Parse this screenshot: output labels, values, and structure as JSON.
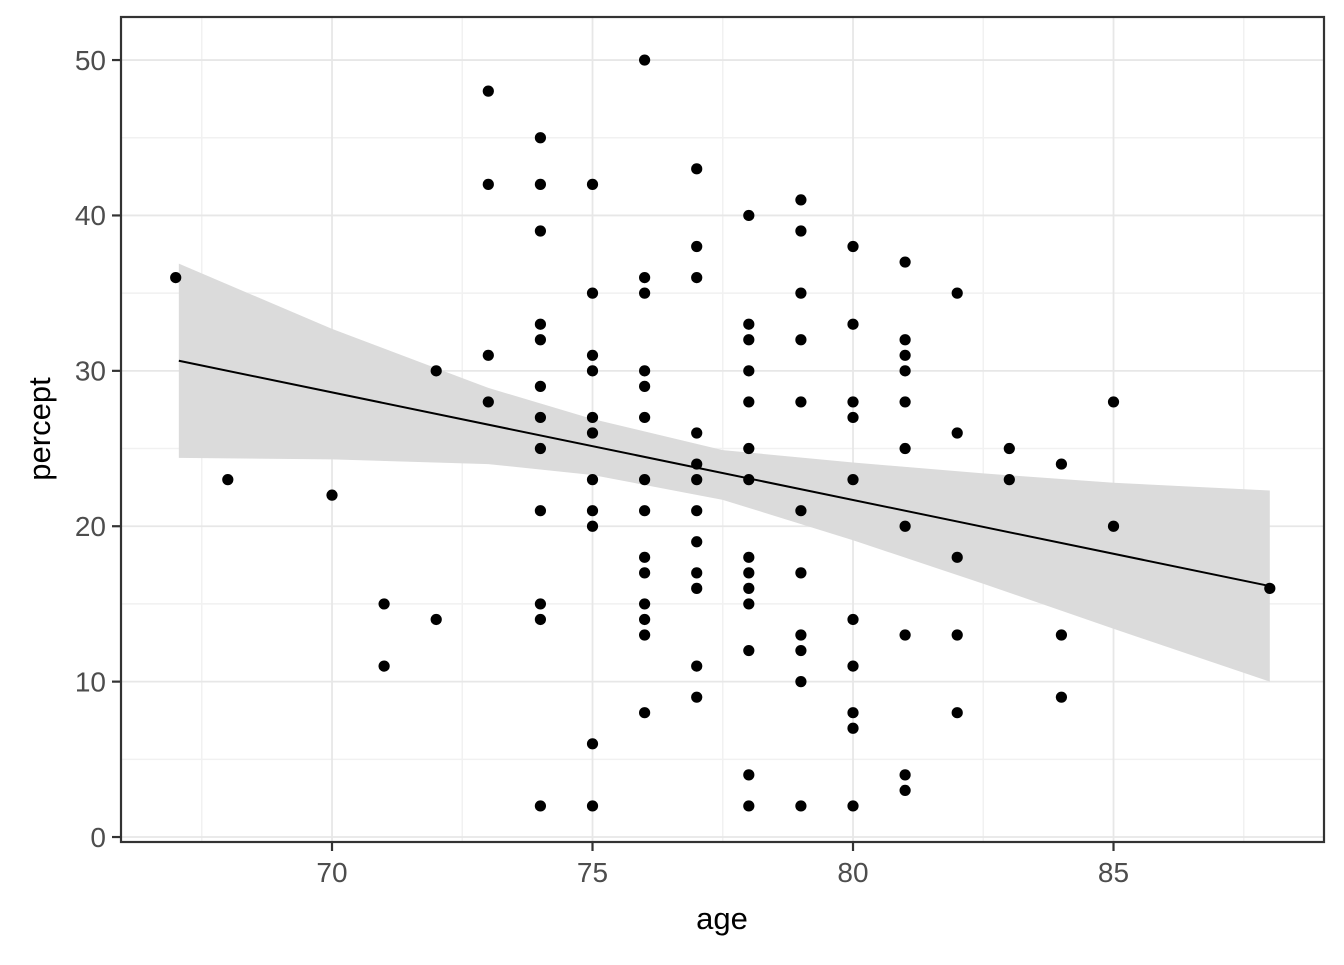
{
  "chart_data": {
    "type": "scatter",
    "title": "",
    "xlabel": "age",
    "ylabel": "percept",
    "xlim": [
      65.95,
      89.04
    ],
    "ylim": [
      -0.32,
      52.77
    ],
    "x_ticks": [
      70,
      75,
      80,
      85
    ],
    "y_ticks": [
      0,
      10,
      20,
      30,
      40,
      50
    ],
    "x_minor": [
      67.5,
      72.5,
      77.5,
      82.5,
      87.5
    ],
    "y_minor": [
      5,
      15,
      25,
      35,
      45
    ],
    "grid": true,
    "legend": "none",
    "points": [
      [
        67,
        36
      ],
      [
        68,
        23
      ],
      [
        70,
        22
      ],
      [
        71,
        15
      ],
      [
        71,
        11
      ],
      [
        72,
        30
      ],
      [
        72,
        14
      ],
      [
        73,
        48
      ],
      [
        73,
        42
      ],
      [
        73,
        31
      ],
      [
        73,
        28
      ],
      [
        74,
        45
      ],
      [
        74,
        42
      ],
      [
        74,
        39
      ],
      [
        74,
        33
      ],
      [
        74,
        32
      ],
      [
        74,
        29
      ],
      [
        74,
        27
      ],
      [
        74,
        25
      ],
      [
        74,
        21
      ],
      [
        74,
        15
      ],
      [
        74,
        14
      ],
      [
        74,
        2
      ],
      [
        75,
        42
      ],
      [
        75,
        35
      ],
      [
        75,
        31
      ],
      [
        75,
        30
      ],
      [
        75,
        27
      ],
      [
        75,
        26
      ],
      [
        75,
        23
      ],
      [
        75,
        21
      ],
      [
        75,
        20
      ],
      [
        75,
        6
      ],
      [
        75,
        2
      ],
      [
        76,
        50
      ],
      [
        76,
        36
      ],
      [
        76,
        35
      ],
      [
        76,
        30
      ],
      [
        76,
        29
      ],
      [
        76,
        27
      ],
      [
        76,
        23
      ],
      [
        76,
        21
      ],
      [
        76,
        18
      ],
      [
        76,
        17
      ],
      [
        76,
        15
      ],
      [
        76,
        14
      ],
      [
        76,
        13
      ],
      [
        76,
        8
      ],
      [
        77,
        43
      ],
      [
        77,
        38
      ],
      [
        77,
        36
      ],
      [
        77,
        26
      ],
      [
        77,
        24
      ],
      [
        77,
        23
      ],
      [
        77,
        21
      ],
      [
        77,
        19
      ],
      [
        77,
        17
      ],
      [
        77,
        16
      ],
      [
        77,
        11
      ],
      [
        77,
        9
      ],
      [
        78,
        40
      ],
      [
        78,
        33
      ],
      [
        78,
        32
      ],
      [
        78,
        30
      ],
      [
        78,
        28
      ],
      [
        78,
        25
      ],
      [
        78,
        23
      ],
      [
        78,
        18
      ],
      [
        78,
        17
      ],
      [
        78,
        16
      ],
      [
        78,
        15
      ],
      [
        78,
        12
      ],
      [
        78,
        4
      ],
      [
        78,
        2
      ],
      [
        79,
        41
      ],
      [
        79,
        39
      ],
      [
        79,
        35
      ],
      [
        79,
        32
      ],
      [
        79,
        28
      ],
      [
        79,
        21
      ],
      [
        79,
        17
      ],
      [
        79,
        13
      ],
      [
        79,
        12
      ],
      [
        79,
        10
      ],
      [
        79,
        2
      ],
      [
        80,
        38
      ],
      [
        80,
        33
      ],
      [
        80,
        28
      ],
      [
        80,
        27
      ],
      [
        80,
        23
      ],
      [
        80,
        14
      ],
      [
        80,
        11
      ],
      [
        80,
        8
      ],
      [
        80,
        7
      ],
      [
        80,
        2
      ],
      [
        81,
        37
      ],
      [
        81,
        32
      ],
      [
        81,
        31
      ],
      [
        81,
        30
      ],
      [
        81,
        28
      ],
      [
        81,
        25
      ],
      [
        81,
        20
      ],
      [
        81,
        13
      ],
      [
        81,
        4
      ],
      [
        81,
        3
      ],
      [
        82,
        35
      ],
      [
        82,
        26
      ],
      [
        82,
        18
      ],
      [
        82,
        13
      ],
      [
        82,
        8
      ],
      [
        83,
        25
      ],
      [
        83,
        23
      ],
      [
        84,
        24
      ],
      [
        84,
        13
      ],
      [
        84,
        9
      ],
      [
        85,
        28
      ],
      [
        85,
        20
      ],
      [
        88,
        16
      ]
    ],
    "regression_line": {
      "x1": 67.06,
      "y1": 30.65,
      "x2": 88,
      "y2": 16.15
    },
    "ci_band": {
      "ages": [
        67.06,
        70,
        73,
        75,
        77.5,
        80,
        82.5,
        85,
        88
      ],
      "upper": [
        36.9,
        32.7,
        28.9,
        26.9,
        24.9,
        24.1,
        23.4,
        22.8,
        22.3
      ],
      "lower": [
        24.4,
        24.3,
        24.0,
        23.3,
        21.7,
        19.1,
        16.3,
        13.4,
        10.0
      ]
    },
    "colors": {
      "points": "#000000",
      "regression_line": "#000000",
      "ci_band": "#DBDBDB",
      "grid_major": "#E7E7E7",
      "grid_minor": "#F1F1F1",
      "panel_border": "#333333",
      "tick_mark": "#333333",
      "tick_label": "#4D4D4D",
      "axis_title": "#000000",
      "background": "#FFFFFF"
    }
  }
}
